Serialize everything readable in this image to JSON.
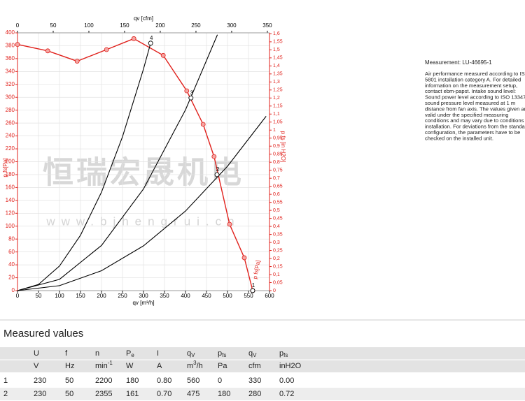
{
  "chart_data": {
    "type": "line",
    "xlabel": "qv [m³/h]",
    "x2label": "qv [cfm]",
    "ylabel": "p fs[Pa]",
    "y2label": "p fs [in H2O]",
    "xlim": [
      0,
      600
    ],
    "xticks": [
      0,
      50,
      100,
      150,
      200,
      250,
      300,
      350,
      400,
      450,
      500,
      550,
      600
    ],
    "x2lim": [
      0,
      353
    ],
    "x2ticks": [
      0,
      50,
      100,
      150,
      200,
      250,
      300,
      350
    ],
    "ylim": [
      0,
      400
    ],
    "yticks": [
      0,
      20,
      40,
      60,
      80,
      100,
      120,
      140,
      160,
      180,
      200,
      220,
      240,
      260,
      280,
      300,
      320,
      340,
      360,
      380,
      400
    ],
    "y2lim": [
      0,
      1.606
    ],
    "y2ticks": [
      0,
      {
        "value": 0.05,
        "label": "0,05"
      },
      {
        "value": 0.1,
        "label": "0,1"
      },
      {
        "value": 0.15,
        "label": "0,15"
      },
      {
        "value": 0.2,
        "label": "0,2"
      },
      {
        "value": 0.25,
        "label": "0,25"
      },
      {
        "value": 0.3,
        "label": "0,3"
      },
      {
        "value": 0.35,
        "label": "0,35"
      },
      {
        "value": 0.4,
        "label": "0,4"
      },
      {
        "value": 0.45,
        "label": "0,45"
      },
      {
        "value": 0.5,
        "label": "0,5"
      },
      {
        "value": 0.55,
        "label": "0,55"
      },
      {
        "value": 0.6,
        "label": "0,6"
      },
      {
        "value": 0.65,
        "label": "0,65"
      },
      {
        "value": 0.7,
        "label": "0,7"
      },
      {
        "value": 0.75,
        "label": "0,75"
      },
      {
        "value": 0.8,
        "label": "0,8"
      },
      {
        "value": 0.85,
        "label": "0,85"
      },
      {
        "value": 0.9,
        "label": "0,9"
      },
      {
        "value": 0.95,
        "label": "0,95"
      },
      1,
      {
        "value": 1.05,
        "label": "1,05"
      },
      {
        "value": 1.1,
        "label": "1,1"
      },
      {
        "value": 1.15,
        "label": "1,15"
      },
      {
        "value": 1.2,
        "label": "1,2"
      },
      {
        "value": 1.25,
        "label": "1,25"
      },
      {
        "value": 1.3,
        "label": "1,3"
      },
      {
        "value": 1.35,
        "label": "1,35"
      },
      {
        "value": 1.4,
        "label": "1,4"
      },
      {
        "value": 1.45,
        "label": "1,45"
      },
      {
        "value": 1.5,
        "label": "1,5"
      },
      {
        "value": 1.55,
        "label": "1,55"
      },
      {
        "value": 1.6,
        "label": "1,6"
      }
    ],
    "grid": true,
    "series": [
      {
        "name": "p fs[Pa]",
        "color": "#e0201b",
        "markers": true,
        "x": [
          0,
          72,
          142,
          212,
          277,
          347,
          403,
          442,
          468,
          505,
          540,
          560
        ],
        "values": [
          382,
          372,
          356,
          374,
          391,
          365,
          310,
          258,
          208,
          103,
          51,
          0
        ]
      },
      {
        "color": "#000000",
        "x": [
          0,
          50,
          100,
          150,
          200,
          250,
          300,
          317
        ],
        "values": [
          0,
          9.6,
          38.2,
          86,
          152.8,
          238.8,
          343.9,
          384
        ]
      },
      {
        "color": "#000000",
        "x": [
          0,
          100,
          200,
          300,
          400,
          476
        ],
        "values": [
          0,
          17.5,
          70.1,
          157.8,
          280.5,
          397
        ]
      },
      {
        "color": "#000000",
        "x": [
          0,
          100,
          200,
          300,
          400,
          500,
          592
        ],
        "values": [
          0,
          7.7,
          30.9,
          69.5,
          123.5,
          193,
          270.6
        ]
      }
    ],
    "operating_points": {
      "x": [
        560,
        475,
        413,
        317
      ],
      "values": [
        0,
        180,
        299,
        384
      ],
      "labels": [
        "1",
        "2",
        "3",
        "4"
      ]
    },
    "watermark": [
      "恒瑞宏晟机电",
      "www.bjhengrui.cn"
    ]
  },
  "notes": {
    "measurement": "Measurement: LU-46695-1",
    "lines": [
      "Air performance measured according to ISO",
      "5801 installation category A. For detailed",
      "information on the measurement setup,",
      "contact ebm-papst. Intake sound level:",
      "Sound power level according to ISO 13347 /",
      "sound pressure level measured at 1 m",
      "distance from fan axis. The values given are",
      "valid under the specified measuring",
      "conditions and may vary due to conditions of",
      "installation. For deviations from the standard",
      "configuration, the parameters have to be",
      "checked on the installed unit."
    ]
  },
  "table": {
    "title": "Measured values",
    "header": [
      {
        "text": "U"
      },
      {
        "text": "f"
      },
      {
        "text": "n"
      },
      {
        "text": "P",
        "sub": "e"
      },
      {
        "text": "I"
      },
      {
        "text": "q",
        "sub": "V"
      },
      {
        "text": "p",
        "sub": "fs"
      },
      {
        "text": "q",
        "sub": "V"
      },
      {
        "text": "p",
        "sub": "fs"
      }
    ],
    "units": [
      {
        "text": "V"
      },
      {
        "text": "Hz"
      },
      {
        "text": "min",
        "sup": "-1"
      },
      {
        "text": "W"
      },
      {
        "text": "A"
      },
      {
        "text": "m",
        "sup": "3",
        "rest": "/h"
      },
      {
        "text": "Pa"
      },
      {
        "text": "cfm"
      },
      {
        "text": "inH2O"
      }
    ],
    "rows": [
      [
        "1",
        "230",
        "50",
        "2200",
        "180",
        "0.80",
        "560",
        "0",
        "330",
        "0.00"
      ],
      [
        "2",
        "230",
        "50",
        "2355",
        "161",
        "0.70",
        "475",
        "180",
        "280",
        "0.72"
      ]
    ]
  }
}
